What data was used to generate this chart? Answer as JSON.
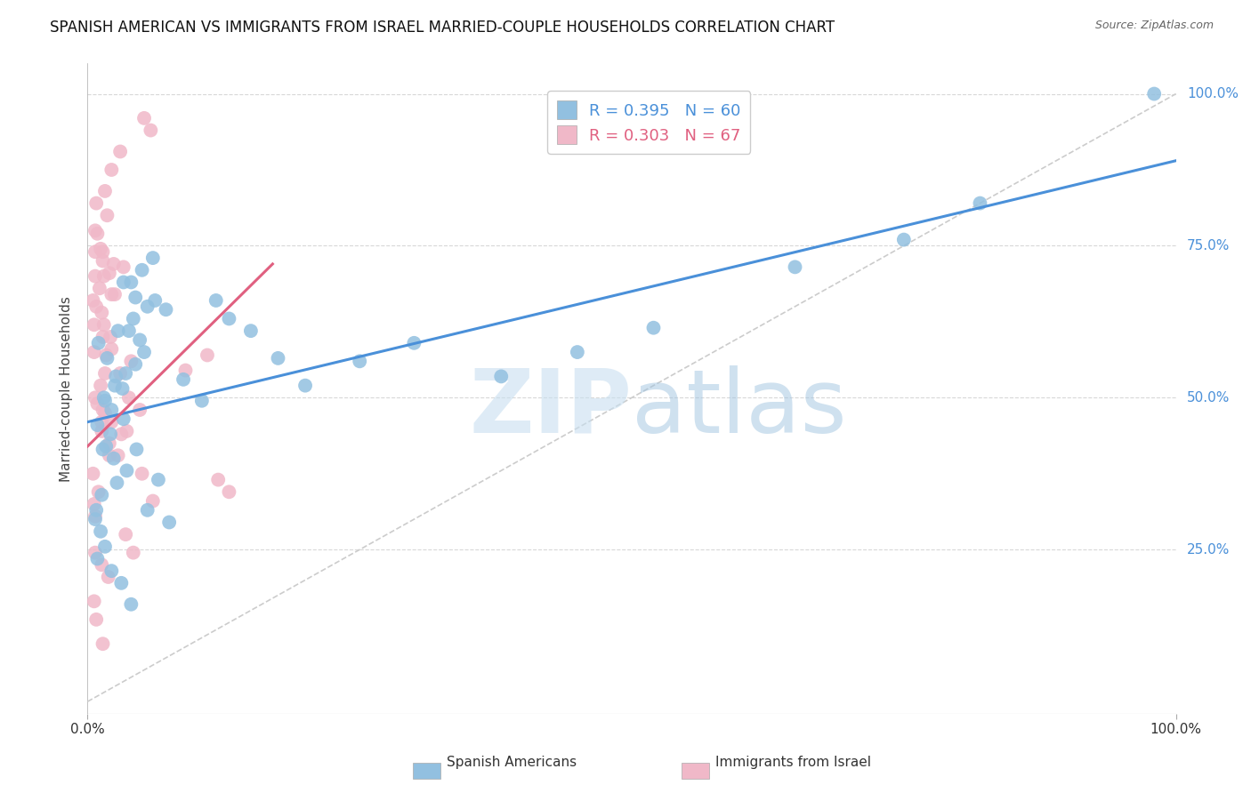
{
  "title": "SPANISH AMERICAN VS IMMIGRANTS FROM ISRAEL MARRIED-COUPLE HOUSEHOLDS CORRELATION CHART",
  "source": "Source: ZipAtlas.com",
  "ylabel": "Married-couple Households",
  "watermark_zip": "ZIP",
  "watermark_atlas": "atlas",
  "blue_R": 0.395,
  "blue_N": 60,
  "pink_R": 0.303,
  "pink_N": 67,
  "xlim": [
    0.0,
    1.0
  ],
  "ylim": [
    -0.02,
    1.05
  ],
  "xtick_positions": [
    0.0,
    1.0
  ],
  "xtick_labels": [
    "0.0%",
    "100.0%"
  ],
  "ytick_positions": [
    0.25,
    0.5,
    0.75,
    1.0
  ],
  "ytick_labels": [
    "25.0%",
    "50.0%",
    "75.0%",
    "100.0%"
  ],
  "blue_color": "#92c0e0",
  "pink_color": "#f0b8c8",
  "blue_line_color": "#4a90d9",
  "pink_line_color": "#e06080",
  "diagonal_color": "#cccccc",
  "background_color": "#ffffff",
  "grid_color": "#d8d8d8",
  "blue_line_x0": 0.0,
  "blue_line_y0": 0.46,
  "blue_line_x1": 1.0,
  "blue_line_y1": 0.89,
  "pink_line_x0": 0.0,
  "pink_line_y0": 0.42,
  "pink_line_x1": 0.17,
  "pink_line_y1": 0.72,
  "blue_scatter_x": [
    0.016,
    0.025,
    0.035,
    0.018,
    0.01,
    0.028,
    0.042,
    0.055,
    0.038,
    0.048,
    0.022,
    0.015,
    0.032,
    0.026,
    0.044,
    0.052,
    0.062,
    0.072,
    0.088,
    0.105,
    0.033,
    0.021,
    0.014,
    0.009,
    0.017,
    0.024,
    0.036,
    0.027,
    0.013,
    0.008,
    0.04,
    0.05,
    0.06,
    0.044,
    0.033,
    0.118,
    0.13,
    0.15,
    0.175,
    0.2,
    0.007,
    0.012,
    0.016,
    0.009,
    0.022,
    0.031,
    0.045,
    0.065,
    0.055,
    0.075,
    0.25,
    0.3,
    0.38,
    0.45,
    0.52,
    0.65,
    0.75,
    0.82,
    0.04,
    0.98
  ],
  "blue_scatter_y": [
    0.495,
    0.52,
    0.54,
    0.565,
    0.59,
    0.61,
    0.63,
    0.65,
    0.61,
    0.595,
    0.48,
    0.5,
    0.515,
    0.535,
    0.555,
    0.575,
    0.66,
    0.645,
    0.53,
    0.495,
    0.465,
    0.44,
    0.415,
    0.455,
    0.42,
    0.4,
    0.38,
    0.36,
    0.34,
    0.315,
    0.69,
    0.71,
    0.73,
    0.665,
    0.69,
    0.66,
    0.63,
    0.61,
    0.565,
    0.52,
    0.3,
    0.28,
    0.255,
    0.235,
    0.215,
    0.195,
    0.415,
    0.365,
    0.315,
    0.295,
    0.56,
    0.59,
    0.535,
    0.575,
    0.615,
    0.715,
    0.76,
    0.82,
    0.16,
    1.0
  ],
  "pink_scatter_x": [
    0.008,
    0.016,
    0.009,
    0.018,
    0.024,
    0.007,
    0.015,
    0.022,
    0.033,
    0.014,
    0.006,
    0.013,
    0.021,
    0.017,
    0.008,
    0.025,
    0.012,
    0.03,
    0.038,
    0.048,
    0.005,
    0.011,
    0.007,
    0.015,
    0.006,
    0.014,
    0.022,
    0.016,
    0.007,
    0.013,
    0.02,
    0.028,
    0.036,
    0.016,
    0.009,
    0.014,
    0.022,
    0.031,
    0.04,
    0.11,
    0.005,
    0.01,
    0.007,
    0.006,
    0.013,
    0.019,
    0.035,
    0.042,
    0.06,
    0.05,
    0.007,
    0.012,
    0.02,
    0.014,
    0.12,
    0.13,
    0.022,
    0.03,
    0.052,
    0.058,
    0.006,
    0.008,
    0.014,
    0.007,
    0.013,
    0.02,
    0.09
  ],
  "pink_scatter_y": [
    0.82,
    0.84,
    0.77,
    0.8,
    0.72,
    0.74,
    0.7,
    0.67,
    0.715,
    0.74,
    0.62,
    0.64,
    0.6,
    0.57,
    0.65,
    0.67,
    0.52,
    0.54,
    0.5,
    0.48,
    0.66,
    0.68,
    0.7,
    0.62,
    0.575,
    0.6,
    0.58,
    0.54,
    0.5,
    0.46,
    0.425,
    0.405,
    0.445,
    0.475,
    0.49,
    0.48,
    0.46,
    0.44,
    0.56,
    0.57,
    0.375,
    0.345,
    0.305,
    0.325,
    0.225,
    0.205,
    0.275,
    0.245,
    0.33,
    0.375,
    0.775,
    0.745,
    0.705,
    0.725,
    0.365,
    0.345,
    0.875,
    0.905,
    0.96,
    0.94,
    0.165,
    0.135,
    0.095,
    0.245,
    0.445,
    0.405,
    0.545
  ]
}
